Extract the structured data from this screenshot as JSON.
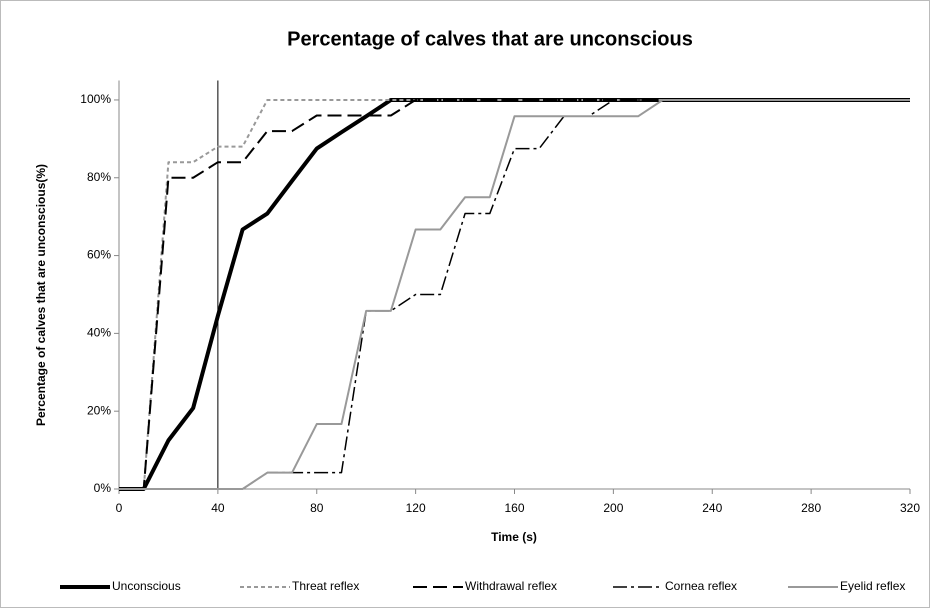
{
  "chart_data": {
    "type": "line",
    "title": "Percentage of calves that are unconscious",
    "x_label": "Time (s)",
    "y_label": "Percentage of calves that are unconscious(%)",
    "xlim": [
      0,
      320
    ],
    "xticks": [
      0,
      40,
      80,
      120,
      160,
      200,
      240,
      280,
      320
    ],
    "ylim": [
      0,
      105
    ],
    "yticks": [
      {
        "value": 0,
        "label": "0%"
      },
      {
        "value": 20,
        "label": "20%"
      },
      {
        "value": 40,
        "label": "40%"
      },
      {
        "value": 60,
        "label": "60%"
      },
      {
        "value": 80,
        "label": "80%"
      },
      {
        "value": 100,
        "label": "100%"
      }
    ],
    "grid": false,
    "legend": "bottom",
    "reference_line_x": 40,
    "series": [
      {
        "name": "Unconscious",
        "color": "#000000",
        "line_width": 4,
        "dash": "solid",
        "x": [
          0,
          10,
          20,
          30,
          40,
          50,
          60,
          70,
          80,
          90,
          100,
          110,
          320
        ],
        "values": [
          0,
          0,
          12.5,
          20.8,
          44.5,
          66.7,
          70.8,
          79.2,
          87.5,
          91.7,
          95.8,
          100,
          100
        ]
      },
      {
        "name": "Threat reflex",
        "color": "#999999",
        "line_width": 2,
        "dash": "dotted",
        "x": [
          0,
          10,
          20,
          30,
          40,
          50,
          60,
          320
        ],
        "values": [
          0,
          0,
          84,
          84,
          88,
          88,
          100,
          100
        ]
      },
      {
        "name": "Withdrawal reflex",
        "color": "#000000",
        "line_width": 2,
        "dash": "dashed",
        "x": [
          0,
          10,
          20,
          30,
          40,
          50,
          60,
          70,
          80,
          110,
          120,
          320
        ],
        "values": [
          0,
          0,
          80,
          80,
          84,
          84,
          92,
          92,
          96,
          96,
          100,
          100
        ]
      },
      {
        "name": "Cornea reflex",
        "color": "#000000",
        "line_width": 1.5,
        "dash": "dashdot",
        "x": [
          0,
          50,
          60,
          90,
          100,
          110,
          120,
          130,
          140,
          150,
          160,
          170,
          180,
          190,
          200,
          320
        ],
        "values": [
          0,
          0,
          4.2,
          4.2,
          45.8,
          45.8,
          50,
          50,
          70.8,
          70.8,
          87.5,
          87.5,
          95.8,
          95.8,
          100,
          100
        ]
      },
      {
        "name": "Eyelid reflex",
        "color": "#999999",
        "line_width": 2,
        "dash": "solid",
        "x": [
          0,
          50,
          60,
          70,
          80,
          90,
          100,
          110,
          120,
          130,
          140,
          150,
          160,
          210,
          220,
          320
        ],
        "values": [
          0,
          0,
          4.2,
          4.2,
          16.7,
          16.7,
          45.8,
          45.8,
          66.7,
          66.7,
          75,
          75,
          95.8,
          95.8,
          100,
          100
        ]
      }
    ]
  }
}
